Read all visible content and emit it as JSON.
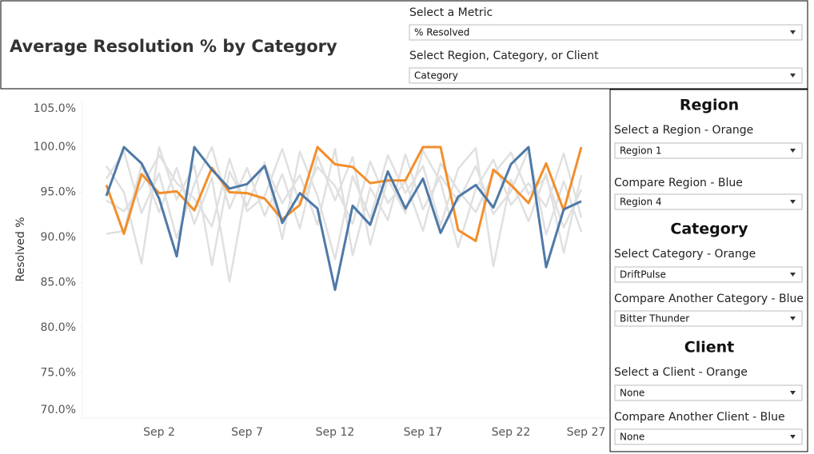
{
  "header": {
    "title": "Average Resolution % by Category",
    "controls": [
      {
        "label": "Select a Metric",
        "value": "% Resolved"
      },
      {
        "label": "Select Region, Category, or Client",
        "value": "Category"
      }
    ]
  },
  "panel": {
    "sections": [
      {
        "heading": "Region",
        "controls": [
          {
            "label": "Select a Region - Orange",
            "value": "Region 1"
          },
          {
            "label": "Compare Region - Blue",
            "value": "Region 4"
          }
        ]
      },
      {
        "heading": "Category",
        "controls": [
          {
            "label": "Select Category - Orange",
            "value": "DriftPulse"
          },
          {
            "label": "Compare Another Category - Blue",
            "value": "Bitter Thunder"
          }
        ]
      },
      {
        "heading": "Client",
        "controls": [
          {
            "label": "Select a Client - Orange",
            "value": "None"
          },
          {
            "label": "Compare Another Client - Blue",
            "value": "None"
          }
        ]
      }
    ]
  },
  "chart_data": {
    "type": "line",
    "y_label": "Resolved %",
    "categories": [
      null,
      null,
      null,
      "Sep 2",
      null,
      null,
      null,
      null,
      "Sep 7",
      null,
      null,
      null,
      null,
      "Sep 12",
      null,
      null,
      null,
      null,
      "Sep 17",
      null,
      null,
      null,
      null,
      "Sep 22",
      null,
      null,
      null,
      null,
      "Sep 27"
    ],
    "ylim": [
      70,
      105
    ],
    "yticks": [
      {
        "value": 70,
        "label": "70.0%"
      },
      {
        "value": 75,
        "label": "75.0%"
      },
      {
        "value": 80,
        "label": "80.0%"
      },
      {
        "value": 85,
        "label": "85.0%"
      },
      {
        "value": 90,
        "label": "90.0%"
      },
      {
        "value": 95,
        "label": "95.0%"
      },
      {
        "value": 100,
        "label": "100.0%"
      },
      {
        "value": 105,
        "label": "105.0%"
      }
    ],
    "series": [
      {
        "color": "#e0e0e0",
        "values": [
          97.9,
          95.0,
          87.1,
          100.0,
          94.2,
          98.0,
          86.9,
          97.3,
          93.5,
          98.3,
          89.8,
          99.5,
          94.6,
          87.6,
          96.8,
          92.1,
          99.1,
          94.9,
          97.9,
          91.3,
          97.6,
          99.9,
          86.8,
          96.4,
          91.8,
          97.1,
          88.3,
          96.9,
          null
        ]
      },
      {
        "color": "#e0e0e0",
        "values": [
          90.4,
          90.7,
          98.0,
          92.8,
          97.7,
          91.5,
          96.6,
          85.1,
          95.9,
          98.1,
          93.8,
          96.9,
          91.4,
          99.8,
          88.0,
          95.5,
          91.9,
          99.2,
          93.1,
          96.8,
          94.0,
          97.9,
          92.6,
          95.1,
          99.7,
          90.3,
          96.2,
          90.6,
          null
        ]
      },
      {
        "color": "#e0e0e0",
        "values": [
          96.5,
          99.5,
          92.7,
          97.1,
          89.9,
          95.9,
          100.0,
          93.2,
          97.7,
          92.4,
          97.0,
          91.0,
          99.0,
          94.1,
          98.9,
          89.2,
          96.5,
          92.7,
          99.6,
          96.1,
          88.9,
          95.4,
          98.6,
          93.6,
          96.0,
          93.4,
          99.3,
          92.2,
          null
        ]
      },
      {
        "color": "#e0e0e0",
        "values": [
          94.1,
          92.9,
          95.6,
          99.1,
          96.0,
          94.3,
          91.2,
          98.7,
          92.9,
          94.6,
          99.8,
          93.6,
          97.8,
          95.7,
          91.5,
          98.4,
          93.8,
          96.2,
          90.7,
          98.2,
          95.2,
          92.8,
          97.0,
          99.4,
          94.8,
          96.7,
          91.1,
          95.3,
          null
        ]
      },
      {
        "color": "#f28e2b",
        "values": [
          95.8,
          90.4,
          97.0,
          94.9,
          95.1,
          93.0,
          97.7,
          95.0,
          94.9,
          94.3,
          92.0,
          93.6,
          100.0,
          98.1,
          97.8,
          96.0,
          96.3,
          96.3,
          100.0,
          100.0,
          90.8,
          89.6,
          97.5,
          95.8,
          93.8,
          98.2,
          93.0,
          100.0,
          null
        ]
      },
      {
        "color": "#4e79a7",
        "values": [
          94.6,
          100.0,
          98.2,
          94.3,
          87.9,
          100.0,
          97.5,
          95.4,
          95.9,
          97.9,
          91.6,
          94.9,
          93.2,
          84.2,
          93.5,
          91.4,
          97.3,
          93.2,
          96.5,
          90.5,
          94.5,
          95.8,
          93.3,
          98.1,
          100.0,
          86.7,
          93.1,
          94.0,
          null
        ]
      }
    ]
  }
}
